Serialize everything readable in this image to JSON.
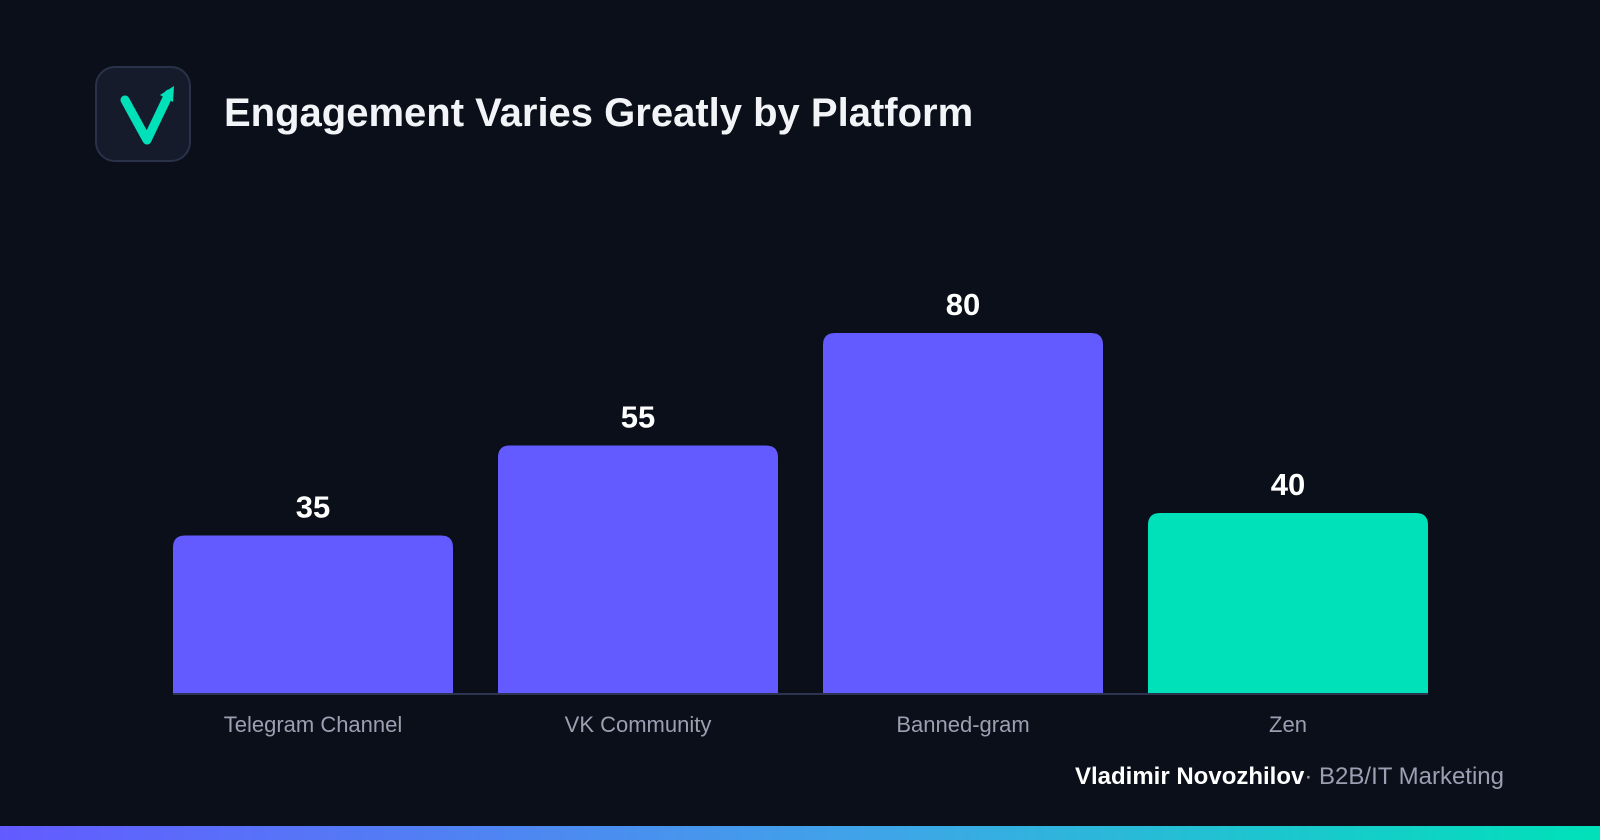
{
  "header": {
    "title": "Engagement Varies Greatly by Platform",
    "logo_icon": "v-arrow-logo-icon"
  },
  "colors": {
    "background": "#0b0f19",
    "bar_primary": "#635bff",
    "bar_highlight": "#00e1b9",
    "axis_label": "#9aa0b2"
  },
  "chart_data": {
    "type": "bar",
    "title": "Engagement Varies Greatly by Platform",
    "categories": [
      "Telegram Channel",
      "VK Community",
      "Banned-gram",
      "Zen"
    ],
    "values": [
      35,
      55,
      80,
      40
    ],
    "highlight_index": 3,
    "data_labels": [
      "35",
      "55",
      "80",
      "40"
    ],
    "xlabel": "",
    "ylabel": "",
    "ylim": [
      0,
      80
    ],
    "grid": false,
    "legend": "none"
  },
  "footer": {
    "author": "Vladimir Novozhilov",
    "separator": "·",
    "role": "B2B/IT Marketing"
  }
}
